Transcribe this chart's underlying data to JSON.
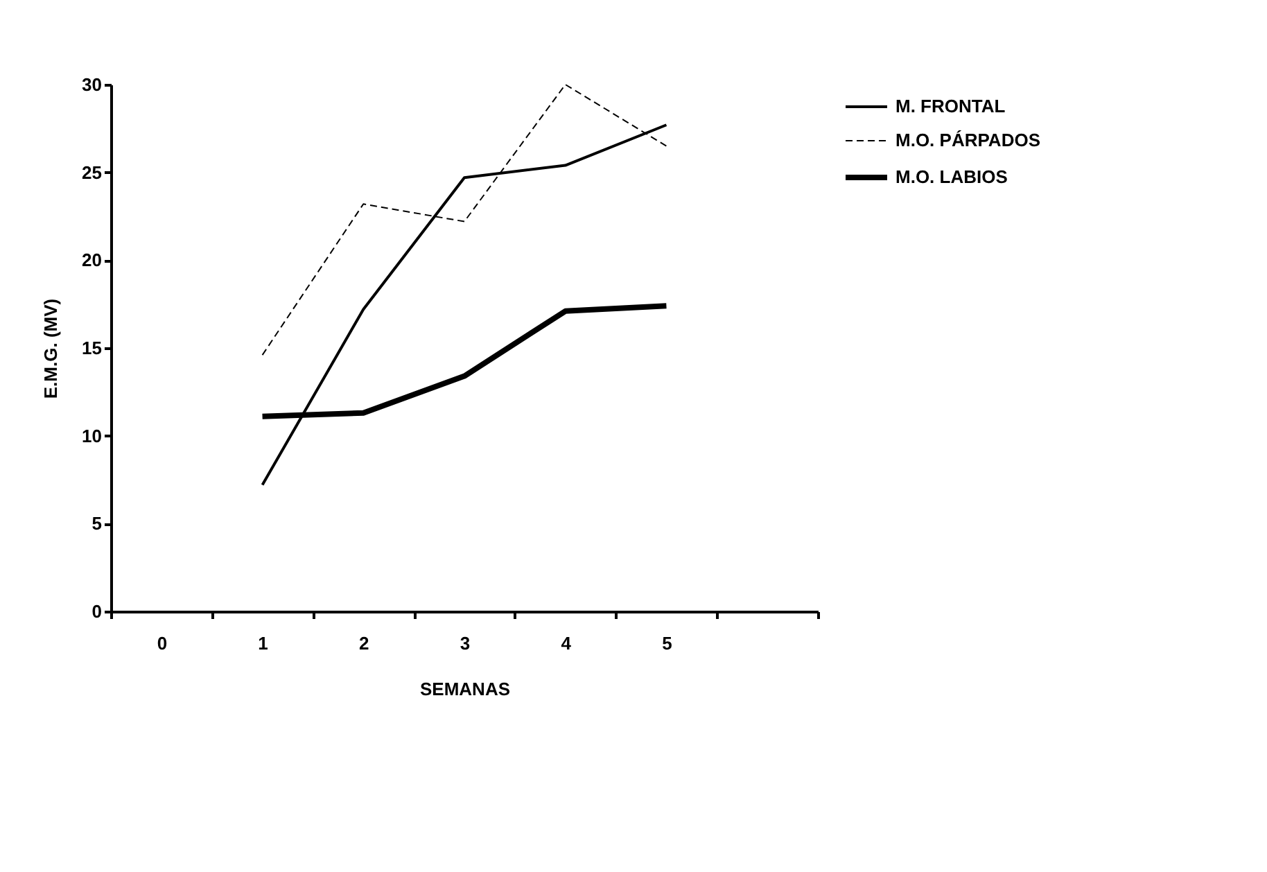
{
  "chart_data": {
    "type": "line",
    "xlabel": "SEMANAS",
    "ylabel": "E.M.G. (MV)",
    "categories": [
      "0",
      "1",
      "2",
      "3",
      "4",
      "5",
      null
    ],
    "series": [
      {
        "name": "M. FRONTAL",
        "color": "#000000",
        "line_style": "solid",
        "values": [
          null,
          7.2,
          17.2,
          24.7,
          25.4,
          27.7,
          null
        ]
      },
      {
        "name": "M.O. PÁRPADOS",
        "color": "#000000",
        "line_style": "dashed",
        "values": [
          null,
          14.6,
          23.2,
          22.2,
          30,
          26.5,
          null
        ]
      },
      {
        "name": "M.O. LABIOS",
        "color": "#000000",
        "line_style": "solid",
        "values": [
          null,
          11.1,
          11.3,
          13.4,
          17.1,
          17.4,
          null
        ]
      }
    ],
    "ylim": [
      0,
      30
    ],
    "yticks": [
      0,
      5,
      10,
      15,
      20,
      25,
      30
    ],
    "grid": false,
    "legend": "top right",
    "marker": "none"
  }
}
